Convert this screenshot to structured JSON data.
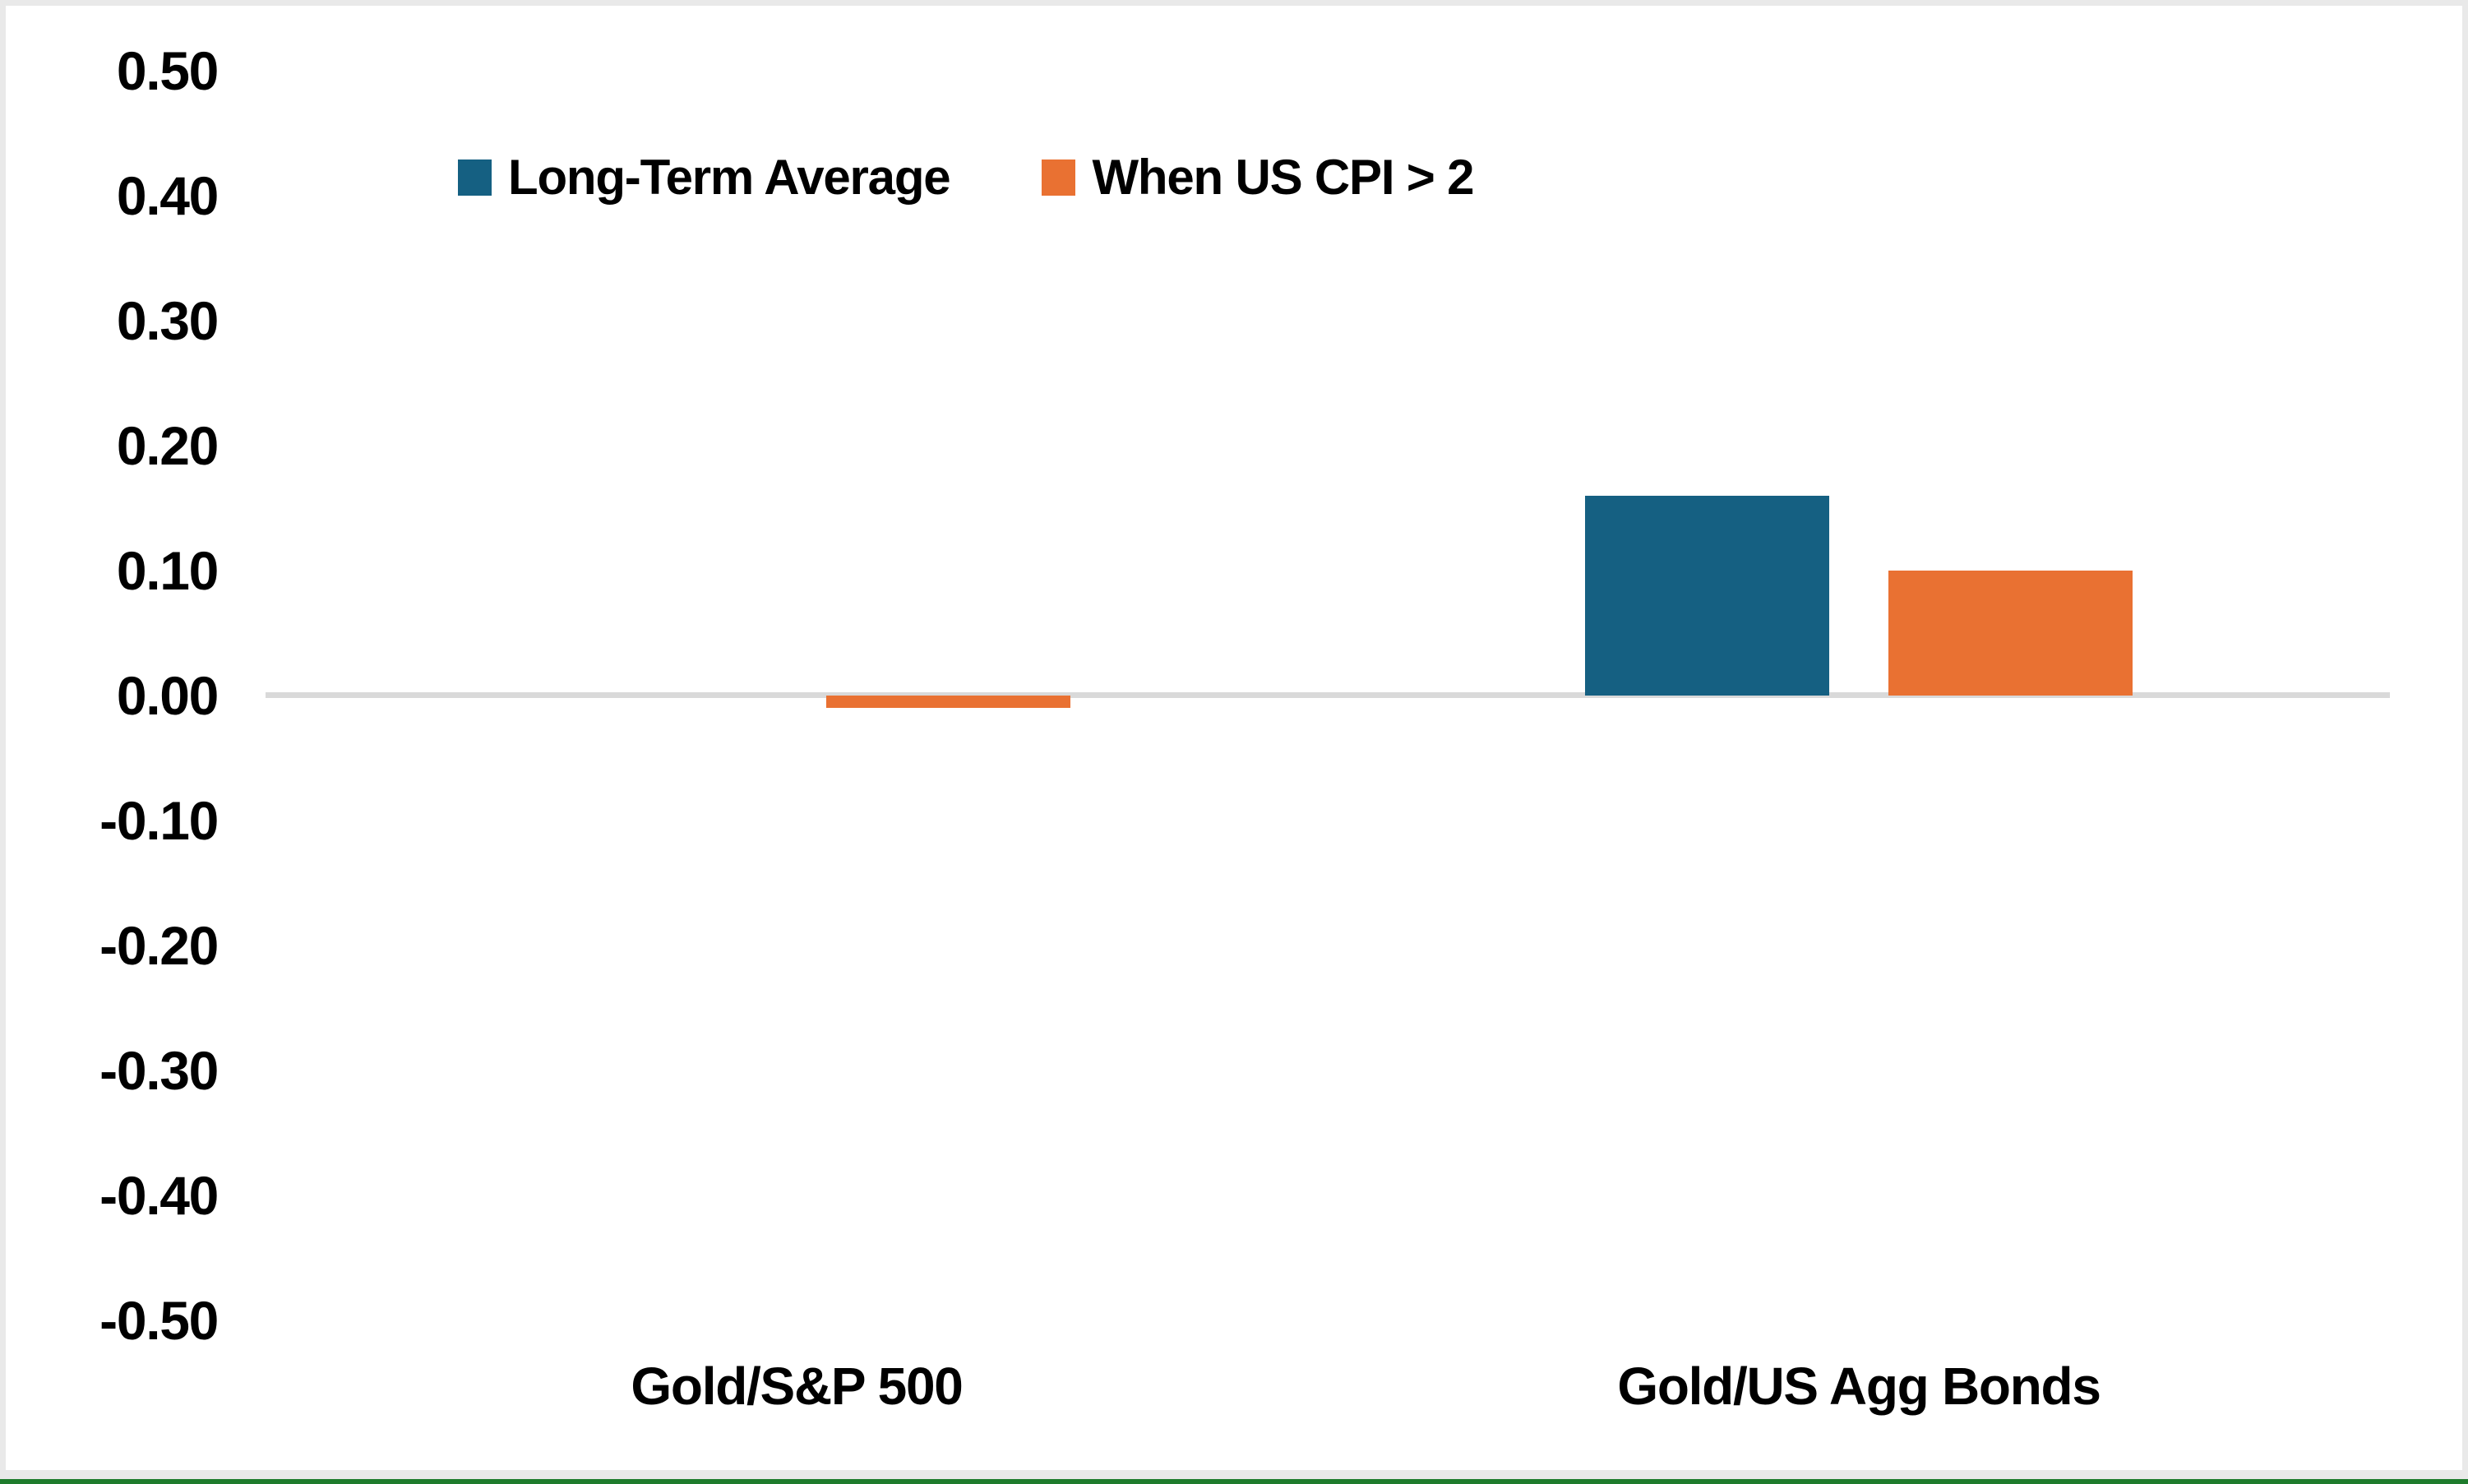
{
  "window": {
    "background": "#FFFFFF",
    "frame_color": "#E9E9E9",
    "bottom_bar_color": "#E9E9E9",
    "bottom_accent_color": "#1E7B2C"
  },
  "chart_data": {
    "type": "bar",
    "title": "",
    "xlabel": "",
    "ylabel": "",
    "categories": [
      "Gold/S&P 500",
      "Gold/US Agg Bonds"
    ],
    "series": [
      {
        "name": "Long-Term Average",
        "color": "#156082",
        "values": [
          0.0,
          0.16
        ]
      },
      {
        "name": "When US CPI > 2",
        "color": "#E97132",
        "values": [
          -0.01,
          0.1
        ]
      }
    ],
    "ylim": [
      -0.5,
      0.5
    ],
    "ytick_step": 0.1,
    "ytick_labels": [
      "0.50",
      "0.40",
      "0.30",
      "0.20",
      "0.10",
      "0.00",
      "-0.10",
      "-0.20",
      "-0.30",
      "-0.40",
      "-0.50"
    ],
    "gridlines": "single horizontal line at zero",
    "gridline_color": "#D9D9D9",
    "axis_text_color": "#000000",
    "legend_position": "top, inside plot area"
  }
}
